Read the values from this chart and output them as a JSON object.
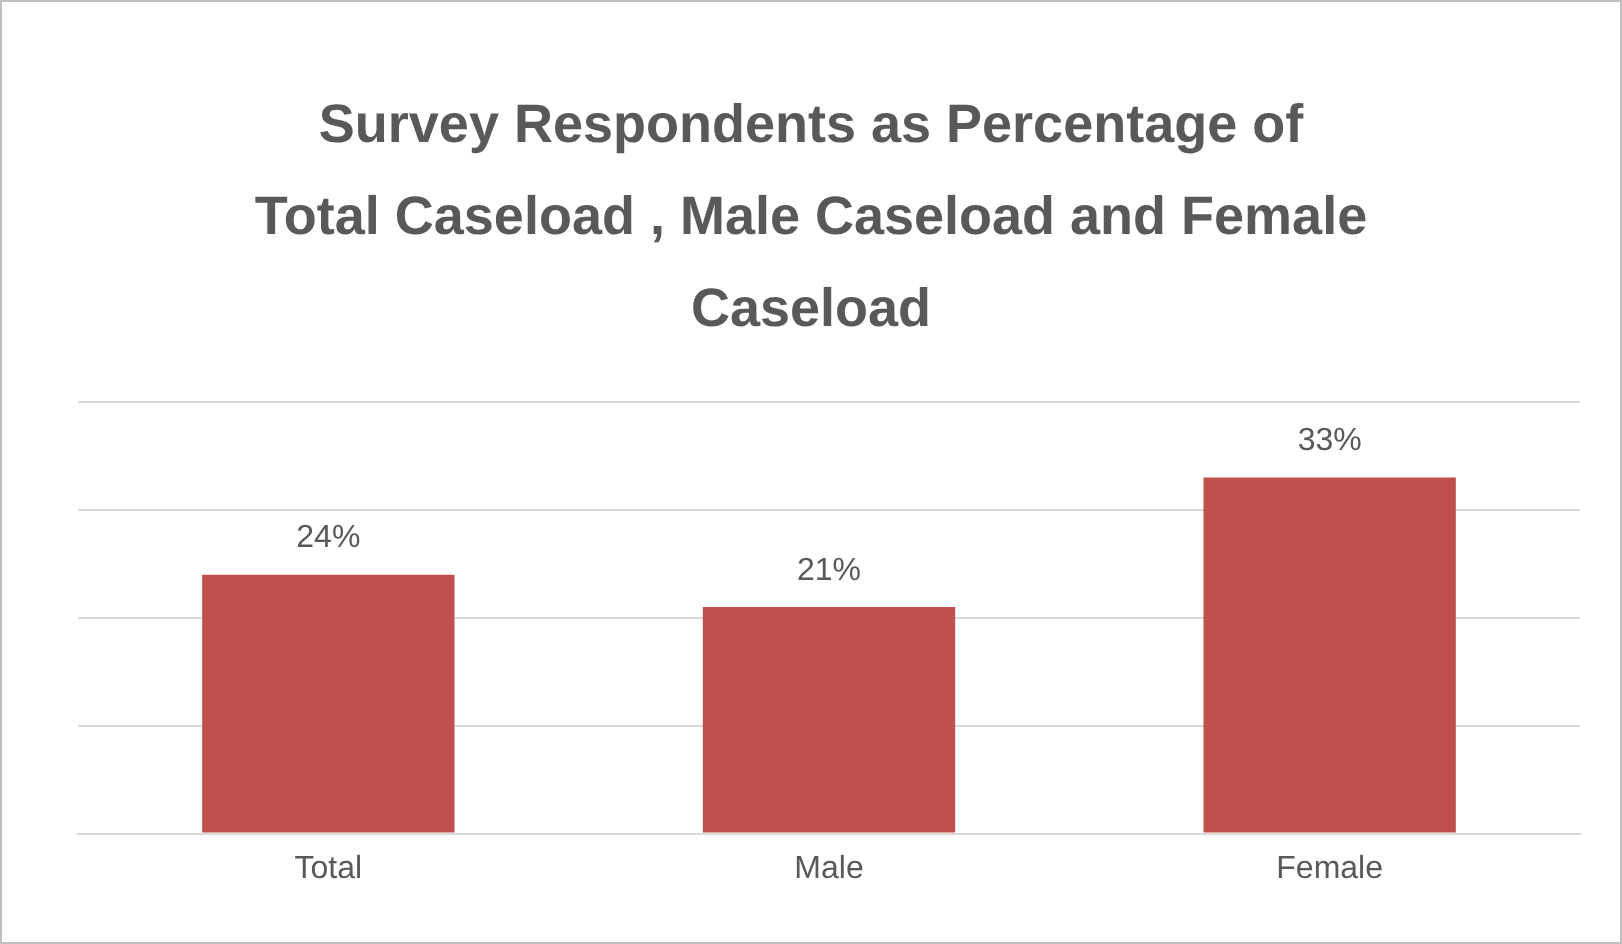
{
  "chart_data": {
    "type": "bar",
    "title": "Survey Respondents as Percentage of Total Caseload , Male Caseload and Female Caseload",
    "categories": [
      "Total",
      "Male",
      "Female"
    ],
    "values": [
      24,
      21,
      33
    ],
    "color": "#c0504d",
    "value_labels": [
      "24%",
      "21%",
      "33%"
    ],
    "ylim": [
      0,
      40
    ],
    "yticks": [
      {
        "value": 0,
        "label": null
      },
      {
        "value": 10,
        "label": null
      },
      {
        "value": 20,
        "label": null
      },
      {
        "value": 30,
        "label": null
      },
      {
        "value": 40,
        "label": null
      }
    ],
    "tick_labels": "x",
    "grid": "y",
    "legend": false
  }
}
